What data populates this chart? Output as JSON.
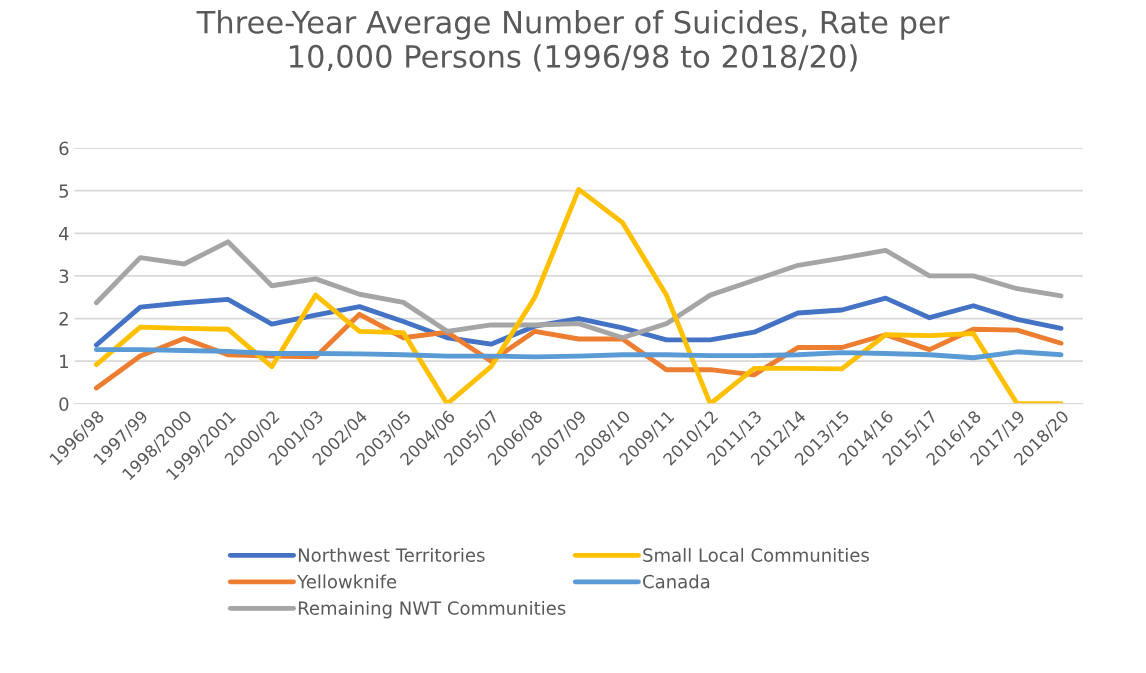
{
  "chart_data": {
    "type": "line",
    "title": "Three-Year Average Number of Suicides, Rate per\n10,000 Persons (1996/98 to 2018/20)",
    "categories": [
      "1996/98",
      "1997/99",
      "1998/2000",
      "1999/2001",
      "2000/02",
      "2001/03",
      "2002/04",
      "2003/05",
      "2004/06",
      "2005/07",
      "2006/08",
      "2007/09",
      "2008/10",
      "2009/11",
      "2010/12",
      "2011/13",
      "2012/14",
      "2013/15",
      "2014/16",
      "2015/17",
      "2016/18",
      "2017/19",
      "2018/20"
    ],
    "series": [
      {
        "name": "Northwest Territories",
        "color": "#4472c4",
        "values": [
          1.38,
          2.27,
          2.37,
          2.45,
          1.87,
          2.08,
          2.28,
          1.93,
          1.55,
          1.4,
          1.82,
          2.0,
          1.78,
          1.5,
          1.5,
          1.68,
          2.13,
          2.2,
          2.48,
          2.02,
          2.3,
          1.98,
          1.77
        ]
      },
      {
        "name": "Yellowknife",
        "color": "#ed7d31",
        "values": [
          0.37,
          1.12,
          1.53,
          1.15,
          1.12,
          1.1,
          2.1,
          1.55,
          1.68,
          1.0,
          1.7,
          1.52,
          1.52,
          0.8,
          0.8,
          0.68,
          1.32,
          1.32,
          1.62,
          1.27,
          1.75,
          1.73,
          1.42
        ]
      },
      {
        "name": "Remaining NWT Communities",
        "color": "#a5a5a5",
        "values": [
          2.37,
          3.43,
          3.28,
          3.8,
          2.77,
          2.93,
          2.57,
          2.38,
          1.7,
          1.85,
          1.85,
          1.88,
          1.55,
          1.88,
          2.55,
          2.9,
          3.25,
          3.42,
          3.6,
          3.0,
          3.0,
          2.7,
          2.53
        ]
      },
      {
        "name": "Small Local Communities",
        "color": "#ffc000",
        "values": [
          0.92,
          1.8,
          1.77,
          1.75,
          0.87,
          2.55,
          1.7,
          1.67,
          0,
          0.87,
          2.5,
          5.03,
          4.25,
          2.55,
          0,
          0.83,
          0.83,
          0.82,
          1.62,
          1.6,
          1.65,
          0,
          0
        ]
      },
      {
        "name": "Canada",
        "color": "#5b9bd5",
        "values": [
          1.27,
          1.27,
          1.25,
          1.23,
          1.18,
          1.18,
          1.17,
          1.15,
          1.12,
          1.12,
          1.1,
          1.12,
          1.15,
          1.15,
          1.13,
          1.13,
          1.15,
          1.2,
          1.18,
          1.15,
          1.08,
          1.22,
          1.15
        ]
      }
    ],
    "ylim": [
      0,
      6
    ],
    "yticks": [
      0,
      1,
      2,
      3,
      4,
      5,
      6
    ],
    "grid": "y",
    "legend": "bottom",
    "marker": "none",
    "line_style": "solid"
  }
}
